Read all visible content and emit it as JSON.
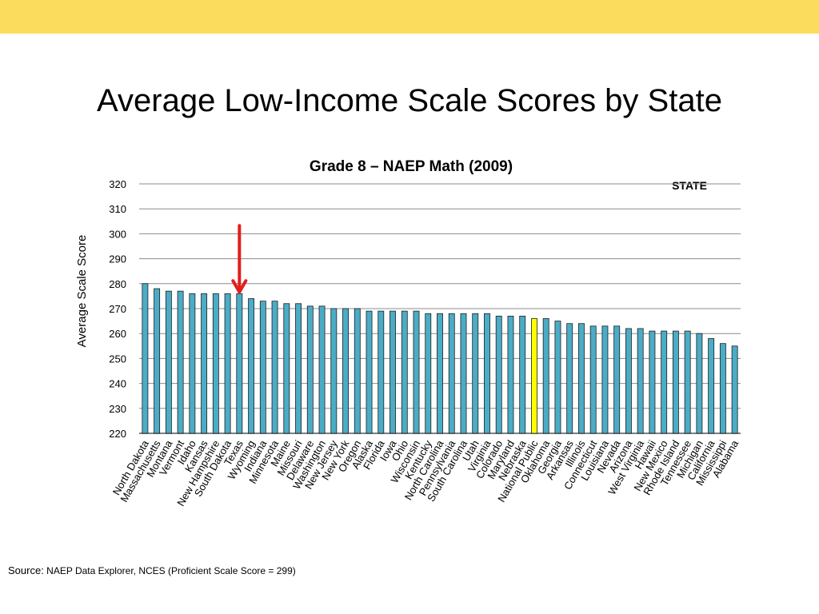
{
  "slide": {
    "title": "Average Low-Income Scale Scores by State",
    "band_color": "#FCDC5C",
    "source_label": "Source:",
    "source_text": "NAEP Data Explorer, NCES (Proficient Scale Score = 299)"
  },
  "chart_data": {
    "type": "bar",
    "title": "Grade 8 – NAEP Math (2009)",
    "xlabel": "",
    "ylabel": "Average Scale Score",
    "legend": "STATE",
    "ylim": [
      220,
      320
    ],
    "yticks": [
      220,
      230,
      240,
      250,
      260,
      270,
      280,
      290,
      300,
      310,
      320
    ],
    "grid": true,
    "bar_color": "#4BACC6",
    "highlight_color": "#FFFF00",
    "highlight_category": "National Public",
    "arrow_color": "#E0201B",
    "arrow_category": "Texas",
    "categories": [
      "North Dakota",
      "Massachusetts",
      "Montana",
      "Vermont",
      "Idaho",
      "Kansas",
      "New Hampshire",
      "South Dakota",
      "Texas",
      "Wyoming",
      "Indiana",
      "Minnesota",
      "Maine",
      "Missouri",
      "Delaware",
      "Washington",
      "New Jersey",
      "New York",
      "Oregon",
      "Alaska",
      "Florida",
      "Iowa",
      "Ohio",
      "Wisconsin",
      "Kentucky",
      "North Carolina",
      "Pennsylvania",
      "South Carolina",
      "Utah",
      "Virginia",
      "Colorado",
      "Maryland",
      "Nebraska",
      "National Public",
      "Oklahoma",
      "Georgia",
      "Arkansas",
      "Illinois",
      "Connecticut",
      "Louisiana",
      "Nevada",
      "Arizona",
      "West Virginia",
      "Hawaii",
      "New Mexico",
      "Rhode Island",
      "Tennessee",
      "Michigan",
      "California",
      "Mississippi",
      "Alabama"
    ],
    "values": [
      280,
      278,
      277,
      277,
      276,
      276,
      276,
      276,
      276,
      274,
      273,
      273,
      272,
      272,
      271,
      271,
      270,
      270,
      270,
      269,
      269,
      269,
      269,
      269,
      268,
      268,
      268,
      268,
      268,
      268,
      267,
      267,
      267,
      266,
      266,
      265,
      264,
      264,
      263,
      263,
      263,
      262,
      262,
      261,
      261,
      261,
      261,
      260,
      258,
      256,
      255
    ]
  }
}
